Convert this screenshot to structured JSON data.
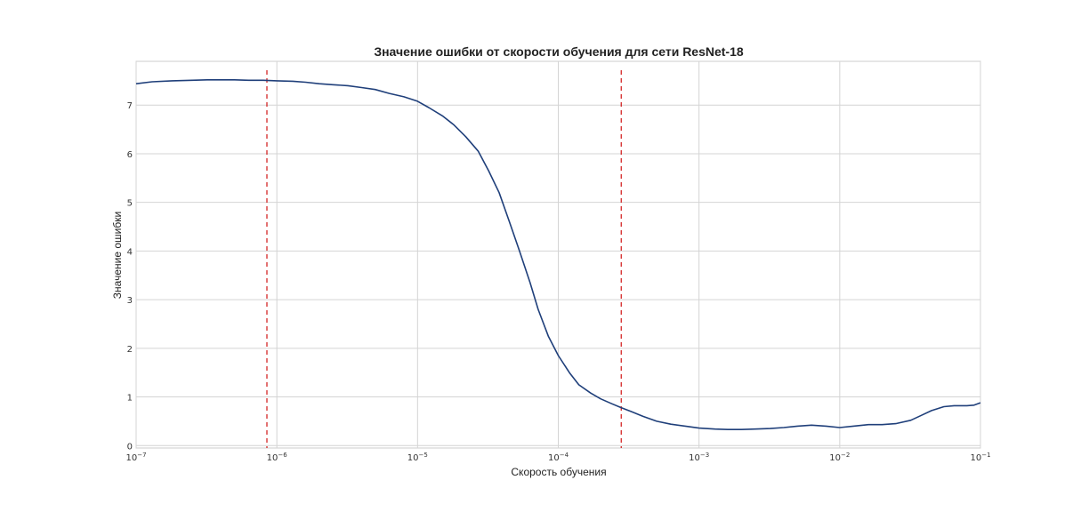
{
  "chart_data": {
    "type": "line",
    "title": "Значение ошибки от скорости обучения для сети ResNet-18",
    "xlabel": "Скорость обучения",
    "ylabel": "Значение ошибки",
    "x_scale": "log",
    "xlim": [
      1e-07,
      0.1
    ],
    "ylim": [
      -0.05,
      7.9
    ],
    "grid": true,
    "x_ticks": [
      {
        "value": 1e-07,
        "base": "10",
        "exp": "−7"
      },
      {
        "value": 1e-06,
        "base": "10",
        "exp": "−6"
      },
      {
        "value": 1e-05,
        "base": "10",
        "exp": "−5"
      },
      {
        "value": 0.0001,
        "base": "10",
        "exp": "−4"
      },
      {
        "value": 0.001,
        "base": "10",
        "exp": "−3"
      },
      {
        "value": 0.01,
        "base": "10",
        "exp": "−2"
      },
      {
        "value": 0.1,
        "base": "10",
        "exp": "−1"
      }
    ],
    "y_ticks": [
      0,
      1,
      2,
      3,
      4,
      5,
      6,
      7
    ],
    "vlines": [
      {
        "x": 8.5e-07,
        "color": "#cc0000",
        "style": "dashed"
      },
      {
        "x": 0.00028,
        "color": "#cc0000",
        "style": "dashed"
      }
    ],
    "series": [
      {
        "color": "#1f3f7a",
        "points": [
          [
            1e-07,
            7.44
          ],
          [
            1.3e-07,
            7.48
          ],
          [
            1.8e-07,
            7.5
          ],
          [
            2.5e-07,
            7.51
          ],
          [
            3.2e-07,
            7.52
          ],
          [
            4e-07,
            7.52
          ],
          [
            5e-07,
            7.52
          ],
          [
            6.3e-07,
            7.51
          ],
          [
            8e-07,
            7.51
          ],
          [
            1e-06,
            7.5
          ],
          [
            1.3e-06,
            7.49
          ],
          [
            1.6e-06,
            7.47
          ],
          [
            2e-06,
            7.44
          ],
          [
            2.5e-06,
            7.42
          ],
          [
            3.2e-06,
            7.4
          ],
          [
            4e-06,
            7.36
          ],
          [
            5e-06,
            7.32
          ],
          [
            6.3e-06,
            7.24
          ],
          [
            8e-06,
            7.17
          ],
          [
            1e-05,
            7.08
          ],
          [
            1.2e-05,
            6.95
          ],
          [
            1.5e-05,
            6.78
          ],
          [
            1.8e-05,
            6.6
          ],
          [
            2.2e-05,
            6.35
          ],
          [
            2.7e-05,
            6.05
          ],
          [
            3.2e-05,
            5.65
          ],
          [
            3.8e-05,
            5.2
          ],
          [
            4.5e-05,
            4.6
          ],
          [
            5.3e-05,
            4.0
          ],
          [
            6.3e-05,
            3.35
          ],
          [
            7.2e-05,
            2.8
          ],
          [
            8.5e-05,
            2.25
          ],
          [
            0.0001,
            1.85
          ],
          [
            0.00012,
            1.5
          ],
          [
            0.00014,
            1.25
          ],
          [
            0.00017,
            1.08
          ],
          [
            0.0002,
            0.96
          ],
          [
            0.00024,
            0.86
          ],
          [
            0.00028,
            0.78
          ],
          [
            0.00033,
            0.7
          ],
          [
            0.0004,
            0.6
          ],
          [
            0.0005,
            0.5
          ],
          [
            0.00063,
            0.44
          ],
          [
            0.0008,
            0.4
          ],
          [
            0.001,
            0.36
          ],
          [
            0.0013,
            0.34
          ],
          [
            0.0016,
            0.33
          ],
          [
            0.002,
            0.33
          ],
          [
            0.0025,
            0.34
          ],
          [
            0.0032,
            0.35
          ],
          [
            0.004,
            0.37
          ],
          [
            0.005,
            0.4
          ],
          [
            0.0063,
            0.42
          ],
          [
            0.008,
            0.4
          ],
          [
            0.01,
            0.37
          ],
          [
            0.0125,
            0.4
          ],
          [
            0.016,
            0.43
          ],
          [
            0.02,
            0.43
          ],
          [
            0.025,
            0.45
          ],
          [
            0.032,
            0.52
          ],
          [
            0.038,
            0.62
          ],
          [
            0.045,
            0.72
          ],
          [
            0.055,
            0.8
          ],
          [
            0.065,
            0.82
          ],
          [
            0.08,
            0.82
          ],
          [
            0.09,
            0.83
          ],
          [
            0.1,
            0.88
          ]
        ]
      }
    ]
  }
}
